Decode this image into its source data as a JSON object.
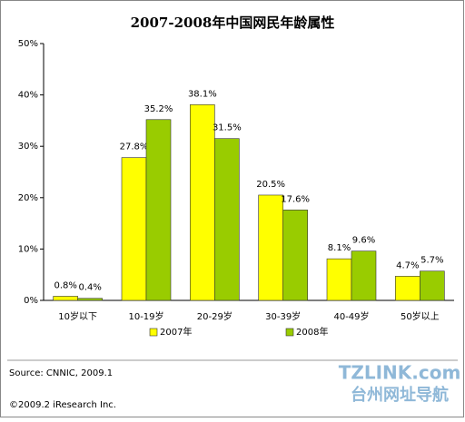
{
  "chart_data": {
    "type": "bar",
    "title": "2007-2008年中国网民年龄属性",
    "categories": [
      "10岁以下",
      "10-19岁",
      "20-29岁",
      "30-39岁",
      "40-49岁",
      "50岁以上"
    ],
    "series": [
      {
        "name": "2007年",
        "color": "#ffff00",
        "values": [
          0.8,
          27.8,
          38.1,
          20.5,
          8.1,
          4.7
        ],
        "value_labels": [
          "0.8%",
          "27.8%",
          "38.1%",
          "20.5%",
          "8.1%",
          "4.7%"
        ]
      },
      {
        "name": "2008年",
        "color": "#99cc00",
        "values": [
          0.4,
          35.2,
          31.5,
          17.6,
          9.6,
          5.7
        ],
        "value_labels": [
          "0.4%",
          "35.2%",
          "31.5%",
          "17.6%",
          "9.6%",
          "5.7%"
        ]
      }
    ],
    "ylim": [
      0,
      50
    ],
    "yticks": [
      {
        "value": 0,
        "label": "0%"
      },
      {
        "value": 10,
        "label": "10%"
      },
      {
        "value": 20,
        "label": "20%"
      },
      {
        "value": 30,
        "label": "30%"
      },
      {
        "value": 40,
        "label": "40%"
      },
      {
        "value": 50,
        "label": "50%"
      }
    ],
    "grid": false,
    "source": "Source:  CNNIC, 2009.1",
    "copyright": "©2009.2  iResearch Inc.",
    "watermark": [
      "TZLINK.com",
      "台州网址导航"
    ]
  }
}
